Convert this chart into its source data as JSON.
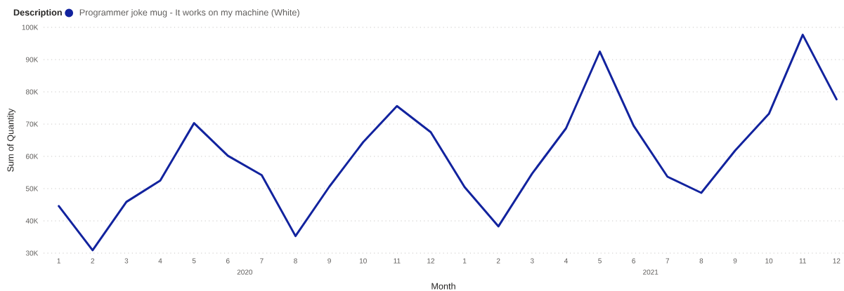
{
  "chart_data": {
    "type": "line",
    "legend_title": "Description",
    "xlabel": "Month",
    "ylabel": "Sum of Quantity",
    "categories": [
      "1",
      "2",
      "3",
      "4",
      "5",
      "6",
      "7",
      "8",
      "9",
      "10",
      "11",
      "12",
      "1",
      "2",
      "3",
      "4",
      "5",
      "6",
      "7",
      "8",
      "9",
      "10",
      "11",
      "12"
    ],
    "series": [
      {
        "name": "Programmer joke mug - It works on my machine (White)",
        "color": "#12239e",
        "values": [
          44600,
          30900,
          45900,
          52500,
          70300,
          60200,
          54200,
          35300,
          50600,
          64400,
          75600,
          67500,
          50500,
          38300,
          54700,
          68700,
          92500,
          69500,
          53700,
          48700,
          61800,
          73200,
          97700,
          77700
        ]
      }
    ],
    "ylim": [
      30000,
      100000
    ],
    "yticks": [
      {
        "value": 30000,
        "label": "30K"
      },
      {
        "value": 40000,
        "label": "40K"
      },
      {
        "value": 50000,
        "label": "50K"
      },
      {
        "value": 60000,
        "label": "60K"
      },
      {
        "value": 70000,
        "label": "70K"
      },
      {
        "value": 80000,
        "label": "80K"
      },
      {
        "value": 90000,
        "label": "90K"
      },
      {
        "value": 100000,
        "label": "100K"
      }
    ],
    "grid": "y",
    "legend": "top left",
    "marker": "none",
    "line_style": "solid",
    "annotations": [
      "2020",
      "2021"
    ]
  }
}
